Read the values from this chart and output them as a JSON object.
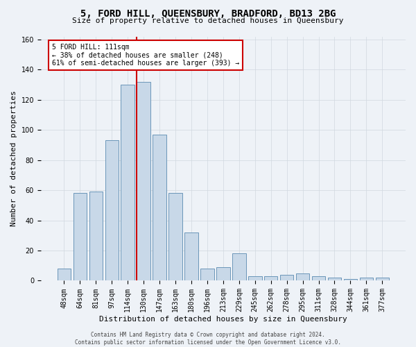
{
  "title": "5, FORD HILL, QUEENSBURY, BRADFORD, BD13 2BG",
  "subtitle": "Size of property relative to detached houses in Queensbury",
  "xlabel": "Distribution of detached houses by size in Queensbury",
  "ylabel": "Number of detached properties",
  "footer_line1": "Contains HM Land Registry data © Crown copyright and database right 2024.",
  "footer_line2": "Contains public sector information licensed under the Open Government Licence v3.0.",
  "bar_labels": [
    "48sqm",
    "64sqm",
    "81sqm",
    "97sqm",
    "114sqm",
    "130sqm",
    "147sqm",
    "163sqm",
    "180sqm",
    "196sqm",
    "213sqm",
    "229sqm",
    "245sqm",
    "262sqm",
    "278sqm",
    "295sqm",
    "311sqm",
    "328sqm",
    "344sqm",
    "361sqm",
    "377sqm"
  ],
  "bar_values": [
    8,
    58,
    59,
    93,
    130,
    132,
    97,
    58,
    32,
    8,
    9,
    18,
    3,
    3,
    4,
    5,
    3,
    2,
    1,
    2,
    2
  ],
  "bar_color": "#c8d8e8",
  "bar_edgecolor": "#5a8ab0",
  "grid_color": "#d0d8e0",
  "bg_color": "#eef2f7",
  "vline_x": 4.57,
  "vline_color": "#cc0000",
  "annotation_text": "5 FORD HILL: 111sqm\n← 38% of detached houses are smaller (248)\n61% of semi-detached houses are larger (393) →",
  "annotation_box_color": "#ffffff",
  "annotation_box_edgecolor": "#cc0000",
  "ylim": [
    0,
    162
  ],
  "yticks": [
    0,
    20,
    40,
    60,
    80,
    100,
    120,
    140,
    160
  ],
  "title_fontsize": 10,
  "subtitle_fontsize": 8,
  "ylabel_fontsize": 8,
  "xlabel_fontsize": 8,
  "tick_fontsize": 7,
  "annotation_fontsize": 7,
  "footer_fontsize": 5.5
}
